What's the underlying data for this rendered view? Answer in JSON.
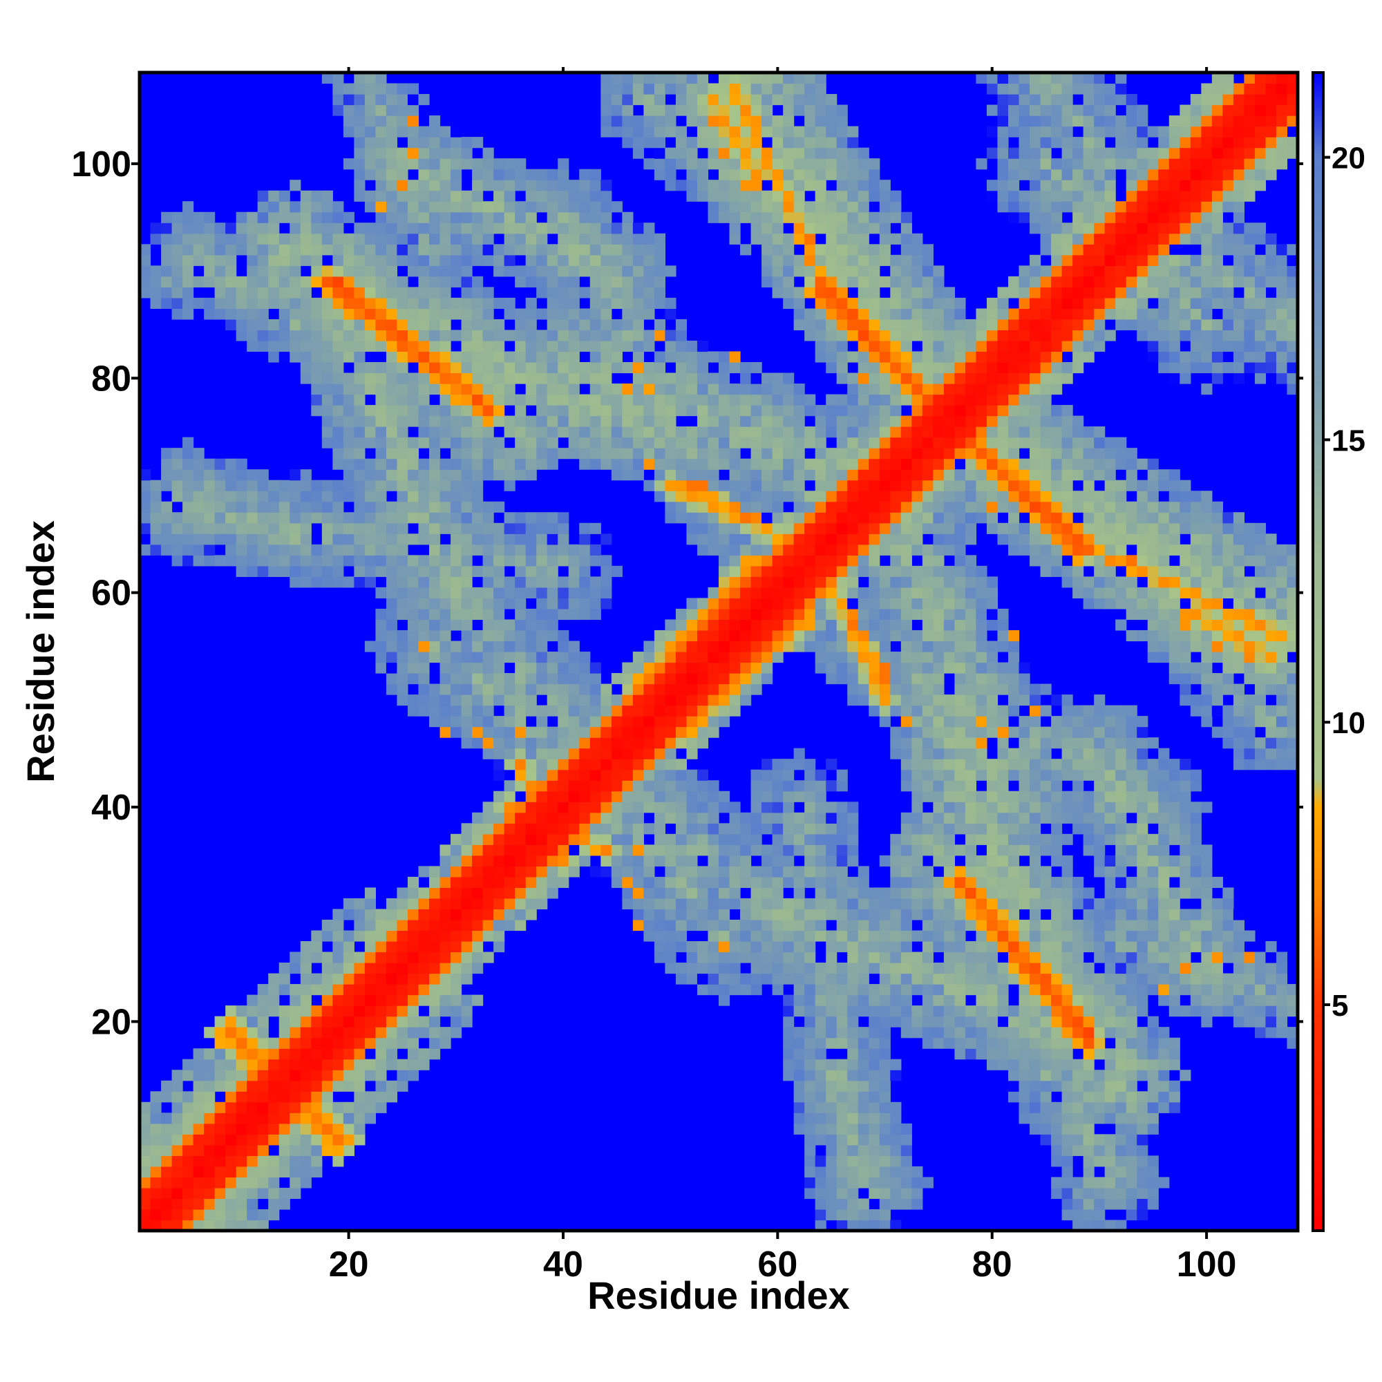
{
  "chart_data": {
    "type": "heatmap",
    "title": "",
    "xlabel": "Residue index",
    "ylabel": "Residue index",
    "n_residues": 108,
    "xlim": [
      1,
      108
    ],
    "ylim": [
      1,
      108
    ],
    "x_ticks": [
      20,
      40,
      60,
      80,
      100
    ],
    "y_ticks": [
      20,
      40,
      60,
      80,
      100
    ],
    "x_tick_labels": [
      "20",
      "40",
      "60",
      "80",
      "100"
    ],
    "y_tick_labels": [
      "20",
      "40",
      "60",
      "80",
      "100"
    ],
    "colorbar": {
      "range": [
        1,
        21.5
      ],
      "ticks": [
        5,
        10,
        15,
        20
      ],
      "tick_labels": [
        "5",
        "10",
        "15",
        "20"
      ],
      "colors": [
        {
          "value": 1,
          "color": "#ff0000"
        },
        {
          "value": 5,
          "color": "#ff3300"
        },
        {
          "value": 7,
          "color": "#ff8800"
        },
        {
          "value": 8.5,
          "color": "#ffaa00"
        },
        {
          "value": 9,
          "color": "#a8c488"
        },
        {
          "value": 13,
          "color": "#9ab892"
        },
        {
          "value": 17,
          "color": "#6f93bb"
        },
        {
          "value": 20,
          "color": "#5a7fcc"
        },
        {
          "value": 21.5,
          "color": "#0000ff"
        }
      ]
    },
    "grid": false,
    "description": "Symmetric residue-residue distance map; red/orange = short distances along diagonal and contact bands, green/gray-blue = intermediate, blue = far (>20).",
    "contact_segments": [
      {
        "x": [
          1,
          108
        ],
        "y": [
          1,
          108
        ],
        "d": 1.5,
        "width": 2.5
      },
      {
        "x": [
          18,
          33
        ],
        "y": [
          89,
          77
        ],
        "d": 6,
        "width": 1.2
      },
      {
        "x": [
          64,
          75
        ],
        "y": [
          89,
          77
        ],
        "d": 6,
        "width": 1.2
      },
      {
        "x": [
          76,
          88
        ],
        "y": [
          76,
          64
        ],
        "d": 6,
        "width": 1.2
      },
      {
        "x": [
          78,
          89
        ],
        "y": [
          32,
          19
        ],
        "d": 6,
        "width": 1.2
      },
      {
        "x": [
          40,
          58
        ],
        "y": [
          42,
          62
        ],
        "d": 6,
        "width": 1.6
      },
      {
        "x": [
          94,
          105
        ],
        "y": [
          95,
          106
        ],
        "d": 6,
        "width": 1.6
      },
      {
        "x": [
          9,
          19
        ],
        "y": [
          19,
          9
        ],
        "d": 7,
        "width": 2.0
      },
      {
        "x": [
          35,
          44
        ],
        "y": [
          40,
          36
        ],
        "d": 7.5,
        "width": 1.0
      },
      {
        "x": [
          50,
          63
        ],
        "y": [
          70,
          64
        ],
        "d": 7.5,
        "width": 1.0
      },
      {
        "x": [
          54,
          58
        ],
        "y": [
          106,
          99
        ],
        "d": 7.5,
        "width": 1.0
      },
      {
        "x": [
          68,
          70
        ],
        "y": [
          56,
          51
        ],
        "d": 7.5,
        "width": 0.8
      },
      {
        "x": [
          92,
          107
        ],
        "y": [
          63,
          56
        ],
        "d": 7.5,
        "width": 1.0
      }
    ],
    "medium_regions": [
      {
        "x": [
          1,
          108
        ],
        "y": [
          1,
          108
        ],
        "d": 11,
        "width": 5
      },
      {
        "x": [
          4,
          25
        ],
        "y": [
          4,
          25
        ],
        "d": 13,
        "width": 8
      },
      {
        "x": [
          20,
          48
        ],
        "y": [
          86,
          76
        ],
        "d": 14,
        "width": 6
      },
      {
        "x": [
          54,
          75
        ],
        "y": [
          105,
          78
        ],
        "d": 14,
        "width": 6
      },
      {
        "x": [
          74,
          108
        ],
        "y": [
          77,
          56
        ],
        "d": 14,
        "width": 7
      },
      {
        "x": [
          76,
          92
        ],
        "y": [
          35,
          15
        ],
        "d": 14,
        "width": 6
      },
      {
        "x": [
          25,
          45
        ],
        "y": [
          100,
          90
        ],
        "d": 15,
        "width": 5
      },
      {
        "x": [
          4,
          30
        ],
        "y": [
          90,
          86
        ],
        "d": 16,
        "width": 4
      },
      {
        "x": [
          4,
          40
        ],
        "y": [
          68,
          62
        ],
        "d": 16,
        "width": 5
      },
      {
        "x": [
          40,
          70
        ],
        "y": [
          82,
          70
        ],
        "d": 15,
        "width": 6
      },
      {
        "x": [
          85,
          108
        ],
        "y": [
          100,
          85
        ],
        "d": 16,
        "width": 6
      },
      {
        "x": [
          60,
          85
        ],
        "y": [
          30,
          20
        ],
        "d": 15,
        "width": 6
      },
      {
        "x": [
          65,
          70
        ],
        "y": [
          15,
          5
        ],
        "d": 16,
        "width": 4
      },
      {
        "x": [
          85,
          92
        ],
        "y": [
          15,
          5
        ],
        "d": 16,
        "width": 4
      },
      {
        "x": [
          92,
          108
        ],
        "y": [
          28,
          22
        ],
        "d": 16,
        "width": 4
      },
      {
        "x": [
          28,
          60
        ],
        "y": [
          55,
          30
        ],
        "d": 16,
        "width": 6
      },
      {
        "x": [
          68,
          95
        ],
        "y": [
          55,
          40
        ],
        "d": 16,
        "width": 5
      },
      {
        "x": [
          88,
          106
        ],
        "y": [
          70,
          48
        ],
        "d": 16,
        "width": 5
      }
    ],
    "scatter_points": [
      {
        "x": 25,
        "y": 98,
        "d": 7
      },
      {
        "x": 26,
        "y": 104,
        "d": 7
      },
      {
        "x": 55,
        "y": 101,
        "d": 7
      },
      {
        "x": 58,
        "y": 104,
        "d": 7.5
      },
      {
        "x": 57,
        "y": 98,
        "d": 7.5
      },
      {
        "x": 63,
        "y": 91,
        "d": 7
      },
      {
        "x": 63,
        "y": 93,
        "d": 6.5
      },
      {
        "x": 47,
        "y": 81,
        "d": 7.5
      },
      {
        "x": 53,
        "y": 70,
        "d": 6.5
      },
      {
        "x": 58,
        "y": 67,
        "d": 7
      },
      {
        "x": 67,
        "y": 57,
        "d": 6.5
      },
      {
        "x": 70,
        "y": 52,
        "d": 6.5
      },
      {
        "x": 45,
        "y": 46,
        "d": 7.5
      },
      {
        "x": 33,
        "y": 46,
        "d": 7.5
      },
      {
        "x": 36,
        "y": 47,
        "d": 7.5
      },
      {
        "x": 47,
        "y": 29,
        "d": 7.5
      },
      {
        "x": 55,
        "y": 27,
        "d": 7.5
      },
      {
        "x": 47,
        "y": 32,
        "d": 7.5
      },
      {
        "x": 104,
        "y": 54,
        "d": 7
      },
      {
        "x": 98,
        "y": 58,
        "d": 7.5
      },
      {
        "x": 103,
        "y": 56,
        "d": 7.5
      },
      {
        "x": 101,
        "y": 26,
        "d": 7.5
      },
      {
        "x": 96,
        "y": 23,
        "d": 8
      },
      {
        "x": 82,
        "y": 56,
        "d": 7.5
      },
      {
        "x": 84,
        "y": 49,
        "d": 7.5
      },
      {
        "x": 79,
        "y": 48,
        "d": 8
      },
      {
        "x": 79,
        "y": 46,
        "d": 7.5
      },
      {
        "x": 72,
        "y": 48,
        "d": 7.5
      },
      {
        "x": 80,
        "y": 68,
        "d": 7
      }
    ]
  }
}
